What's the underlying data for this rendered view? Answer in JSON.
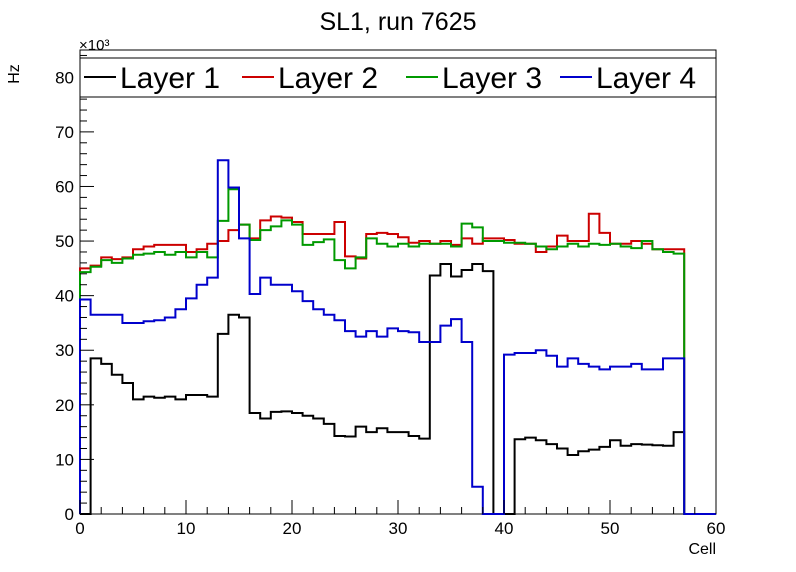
{
  "chart_data": {
    "type": "line",
    "title": "SL1, run 7625",
    "xlabel": "Cell",
    "ylabel": "Hz",
    "y_multiplier": "×10³",
    "xlim": [
      0,
      60
    ],
    "ylim": [
      0,
      85
    ],
    "x_ticks": [
      0,
      10,
      20,
      30,
      40,
      50,
      60
    ],
    "y_ticks": [
      0,
      10,
      20,
      30,
      40,
      50,
      60,
      70,
      80
    ],
    "grid": false,
    "legend_position": "top",
    "step_histogram": true,
    "bin_edges_start": 0,
    "bin_width": 1,
    "series": [
      {
        "name": "Layer 1",
        "color": "#000000",
        "values": [
          0,
          28.5,
          27.5,
          25.5,
          24,
          21,
          21.5,
          21.3,
          21.5,
          21,
          21.8,
          21.8,
          21.5,
          33,
          36.5,
          36,
          18.5,
          17.5,
          18.7,
          18.8,
          18.5,
          18,
          17.5,
          16.5,
          14.3,
          14.2,
          16,
          15,
          15.7,
          15,
          15,
          14.3,
          13.8,
          43.7,
          45.8,
          43.5,
          44.7,
          45.8,
          44.5,
          0,
          0,
          13.7,
          14,
          13.5,
          12.8,
          12,
          10.8,
          11.5,
          11.8,
          12.3,
          13.5,
          12.5,
          12.8,
          12.7,
          12.6,
          12.5,
          15,
          0,
          0,
          0
        ]
      },
      {
        "name": "Layer 2",
        "color": "#cc0000",
        "values": [
          45,
          45.5,
          47,
          46.7,
          47,
          48.5,
          49,
          49.3,
          49.3,
          49.3,
          48,
          48.5,
          49.5,
          50,
          52,
          53,
          50.5,
          53.8,
          54.5,
          54.3,
          53.5,
          51.3,
          51.3,
          51.3,
          53.5,
          47.2,
          46.8,
          51.3,
          51.5,
          51.3,
          50.7,
          49.7,
          50,
          49.5,
          50,
          49.3,
          50.5,
          49.5,
          50.5,
          50.5,
          50.2,
          49.5,
          49.5,
          48,
          49,
          51,
          50,
          50,
          55,
          51.5,
          49.5,
          49.5,
          50,
          49.5,
          48.5,
          48.5,
          48.5,
          0,
          0,
          0
        ]
      },
      {
        "name": "Layer 3",
        "color": "#009900",
        "values": [
          44.3,
          45.3,
          46.5,
          46,
          46.8,
          47.5,
          47.7,
          48,
          47.5,
          48,
          47,
          48,
          47,
          53.7,
          59.5,
          53,
          50.2,
          52,
          52.7,
          53.8,
          53,
          49.3,
          49.8,
          50.3,
          46.5,
          45,
          47,
          50.5,
          49.5,
          49,
          49.5,
          49,
          49.5,
          49.5,
          49.5,
          49,
          53.2,
          52.5,
          50,
          50,
          49.7,
          49.7,
          49.5,
          49,
          48.5,
          49,
          49.5,
          49,
          49.5,
          49.3,
          49.5,
          49,
          48.7,
          50,
          48.5,
          48,
          47.7,
          0,
          0,
          0
        ]
      },
      {
        "name": "Layer 4",
        "color": "#0000cc",
        "values": [
          39.3,
          36.5,
          36.5,
          36.5,
          35,
          35,
          35.3,
          35.5,
          36,
          37.5,
          39.5,
          42,
          43.3,
          64.8,
          59.8,
          50.5,
          40.3,
          43.3,
          42,
          42,
          40.8,
          39,
          37.5,
          36.5,
          35.5,
          33.5,
          32.5,
          33.5,
          32.5,
          34,
          33.5,
          33.3,
          31.5,
          31.5,
          34.5,
          35.7,
          31.5,
          5,
          0,
          0,
          29.2,
          29.5,
          29.5,
          30,
          29,
          27,
          28.5,
          27.5,
          27,
          26.5,
          27,
          27,
          27.5,
          26.5,
          26.5,
          28.5,
          28.5,
          0,
          0,
          0
        ]
      }
    ]
  }
}
